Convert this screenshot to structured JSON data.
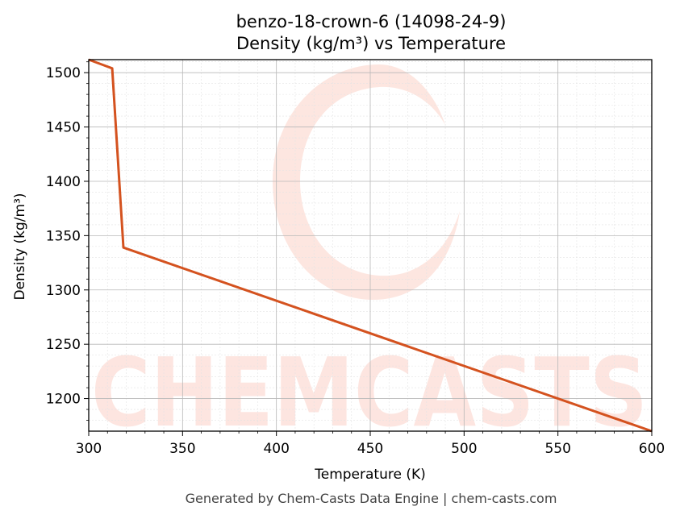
{
  "chart_data": {
    "type": "line",
    "title": "benzo-18-crown-6 (14098-24-9)",
    "subtitle": "Density (kg/m³) vs Temperature",
    "xlabel": "Temperature (K)",
    "ylabel": "Density (kg/m³)",
    "xlim": [
      300,
      600
    ],
    "ylim": [
      1170,
      1512
    ],
    "xticks": [
      300,
      350,
      400,
      450,
      500,
      550,
      600
    ],
    "yticks": [
      1200,
      1250,
      1300,
      1350,
      1400,
      1450,
      1500
    ],
    "grid": true,
    "legend": "none",
    "series": [
      {
        "color": "#d4521f",
        "x": [
          300,
          312.5,
          318.5,
          600
        ],
        "y": [
          1512,
          1504,
          1339,
          1170
        ]
      }
    ]
  },
  "watermark": {
    "text": "CHEMCASTS",
    "color": "#fde3dd"
  },
  "footer": "Generated by Chem-Casts Data Engine | chem-casts.com"
}
